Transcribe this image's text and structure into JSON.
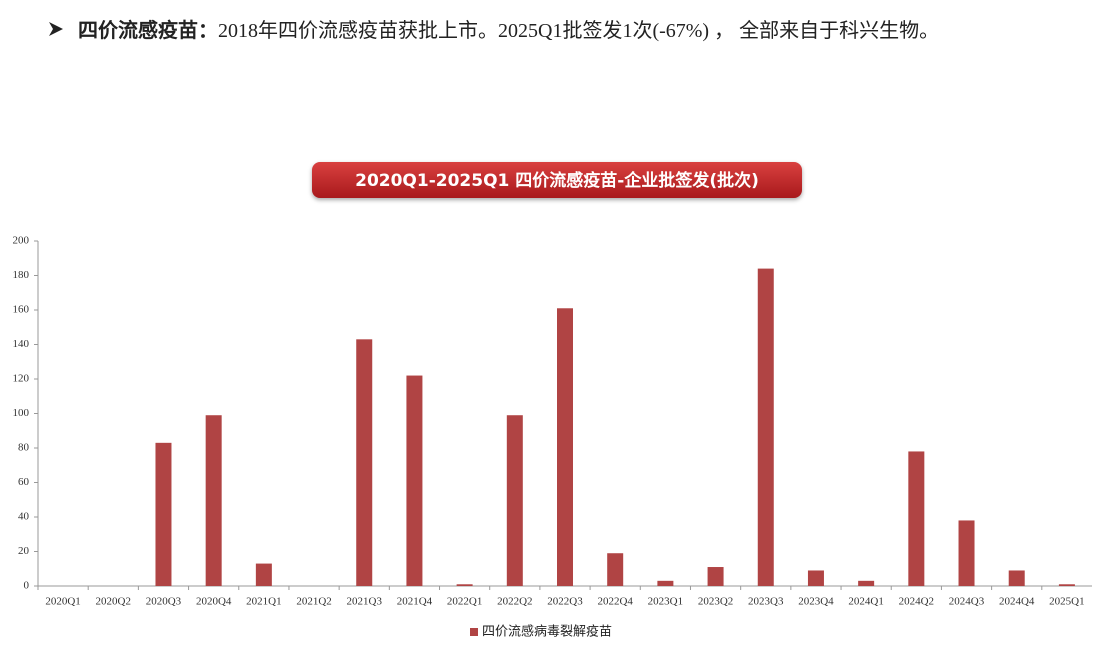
{
  "header": {
    "label": "四价流感疫苗：",
    "text": "2018年四价流感疫苗获批上市。2025Q1批签发1次(-67%) ， 全部来自于科兴生物。"
  },
  "chart_data": {
    "type": "bar",
    "title": "2020Q1-2025Q1 四价流感疫苗-企业批签发(批次)",
    "categories": [
      "2020Q1",
      "2020Q2",
      "2020Q3",
      "2020Q4",
      "2021Q1",
      "2021Q2",
      "2021Q3",
      "2021Q4",
      "2022Q1",
      "2022Q2",
      "2022Q3",
      "2022Q4",
      "2023Q1",
      "2023Q2",
      "2023Q3",
      "2023Q4",
      "2024Q1",
      "2024Q2",
      "2024Q3",
      "2024Q4",
      "2025Q1"
    ],
    "series": [
      {
        "name": "四价流感病毒裂解疫苗",
        "color": "#b04444",
        "values": [
          0,
          0,
          83,
          99,
          13,
          0,
          143,
          122,
          1,
          99,
          161,
          19,
          3,
          11,
          184,
          9,
          3,
          78,
          38,
          9,
          1
        ]
      }
    ],
    "ylim": [
      0,
      200
    ],
    "yticks": [
      0,
      20,
      40,
      60,
      80,
      100,
      120,
      140,
      160,
      180,
      200
    ],
    "grid": false,
    "legend": "bottom"
  }
}
